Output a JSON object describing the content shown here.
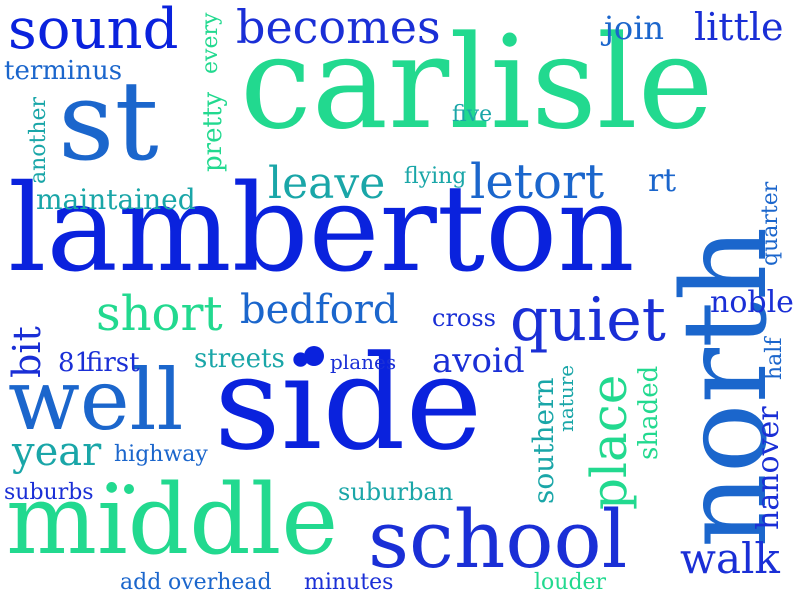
{
  "colors": {
    "royal_blue": "#1a2fd6",
    "deep_blue": "#0a22dd",
    "ocean_blue": "#1b66cc",
    "teal": "#1aa6a8",
    "mint_green": "#22d98f",
    "steel_blue": "#2a82c2"
  },
  "words": [
    {
      "text": "carlisle"
    },
    {
      "text": "lamberton"
    },
    {
      "text": "side"
    },
    {
      "text": "north"
    },
    {
      "text": "middle"
    },
    {
      "text": "school"
    },
    {
      "text": "st"
    },
    {
      "text": "well"
    },
    {
      "text": "sound"
    },
    {
      "text": "becomes"
    },
    {
      "text": "quiet"
    },
    {
      "text": "place"
    },
    {
      "text": "short"
    },
    {
      "text": "bedford"
    },
    {
      "text": "leave"
    },
    {
      "text": "letort"
    },
    {
      "text": "walk"
    },
    {
      "text": "little"
    },
    {
      "text": "join"
    },
    {
      "text": "terminus"
    },
    {
      "text": "pretty"
    },
    {
      "text": "every"
    },
    {
      "text": "another"
    },
    {
      "text": "maintained"
    },
    {
      "text": "five"
    },
    {
      "text": "flying"
    },
    {
      "text": "rt"
    },
    {
      "text": "quarter"
    },
    {
      "text": "noble"
    },
    {
      "text": "half"
    },
    {
      "text": "hanover"
    },
    {
      "text": "cross"
    },
    {
      "text": "bit"
    },
    {
      "text": "81"
    },
    {
      "text": "first"
    },
    {
      "text": "streets"
    },
    {
      "text": "planes"
    },
    {
      "text": "avoid"
    },
    {
      "text": "year"
    },
    {
      "text": "highway"
    },
    {
      "text": "southern"
    },
    {
      "text": "nature"
    },
    {
      "text": "shaded"
    },
    {
      "text": "suburbs"
    },
    {
      "text": "suburban"
    },
    {
      "text": "add"
    },
    {
      "text": "overhead"
    },
    {
      "text": "minutes"
    },
    {
      "text": "louder"
    }
  ]
}
